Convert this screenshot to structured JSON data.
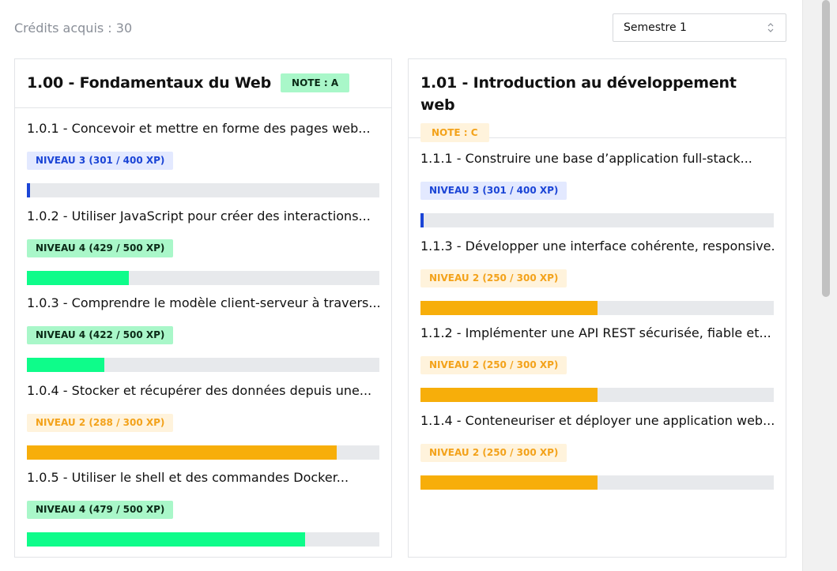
{
  "credits": "Crédits acquis : 30",
  "semester_select": {
    "value": "Semestre 1"
  },
  "colors": {
    "blue": "#1b45d6",
    "green": "#0efc8a",
    "yellow": "#f7ae0a",
    "track": "#e7e9ec"
  },
  "modules": [
    {
      "title": "1.00 - Fondamentaux du Web",
      "note": "NOTE : A",
      "skills": [
        {
          "title": "1.0.1 - Concevoir et mettre en forme des pages web...",
          "level": "NIVEAU 3 (301 / 400 XP)",
          "progress": 0.01,
          "color": "blue"
        },
        {
          "title": "1.0.2 - Utiliser JavaScript pour créer des interactions...",
          "level": "NIVEAU 4 (429 / 500 XP)",
          "progress": 0.29,
          "color": "green"
        },
        {
          "title": "1.0.3 - Comprendre le modèle client-serveur à travers...",
          "level": "NIVEAU 4 (422 / 500 XP)",
          "progress": 0.22,
          "color": "green"
        },
        {
          "title": "1.0.4 - Stocker et récupérer des données depuis une...",
          "level": "NIVEAU 2 (288 / 300 XP)",
          "progress": 0.88,
          "color": "yellow"
        },
        {
          "title": "1.0.5 - Utiliser le shell et des commandes Docker...",
          "level": "NIVEAU 4 (479 / 500 XP)",
          "progress": 0.79,
          "color": "green"
        }
      ]
    },
    {
      "title": "1.01 - Introduction au développement web",
      "note": "NOTE : C",
      "skills": [
        {
          "title": "1.1.1 - Construire une base d’application full-stack...",
          "level": "NIVEAU 3 (301 / 400 XP)",
          "progress": 0.01,
          "color": "blue"
        },
        {
          "title": "1.1.3 - Développer une interface cohérente, responsive...",
          "level": "NIVEAU 2 (250 / 300 XP)",
          "progress": 0.5,
          "color": "yellow"
        },
        {
          "title": "1.1.2 - Implémenter une API REST sécurisée, fiable et...",
          "level": "NIVEAU 2 (250 / 300 XP)",
          "progress": 0.5,
          "color": "yellow"
        },
        {
          "title": "1.1.4 - Conteneuriser et déployer une application web...",
          "level": "NIVEAU 2 (250 / 300 XP)",
          "progress": 0.5,
          "color": "yellow"
        }
      ]
    }
  ]
}
